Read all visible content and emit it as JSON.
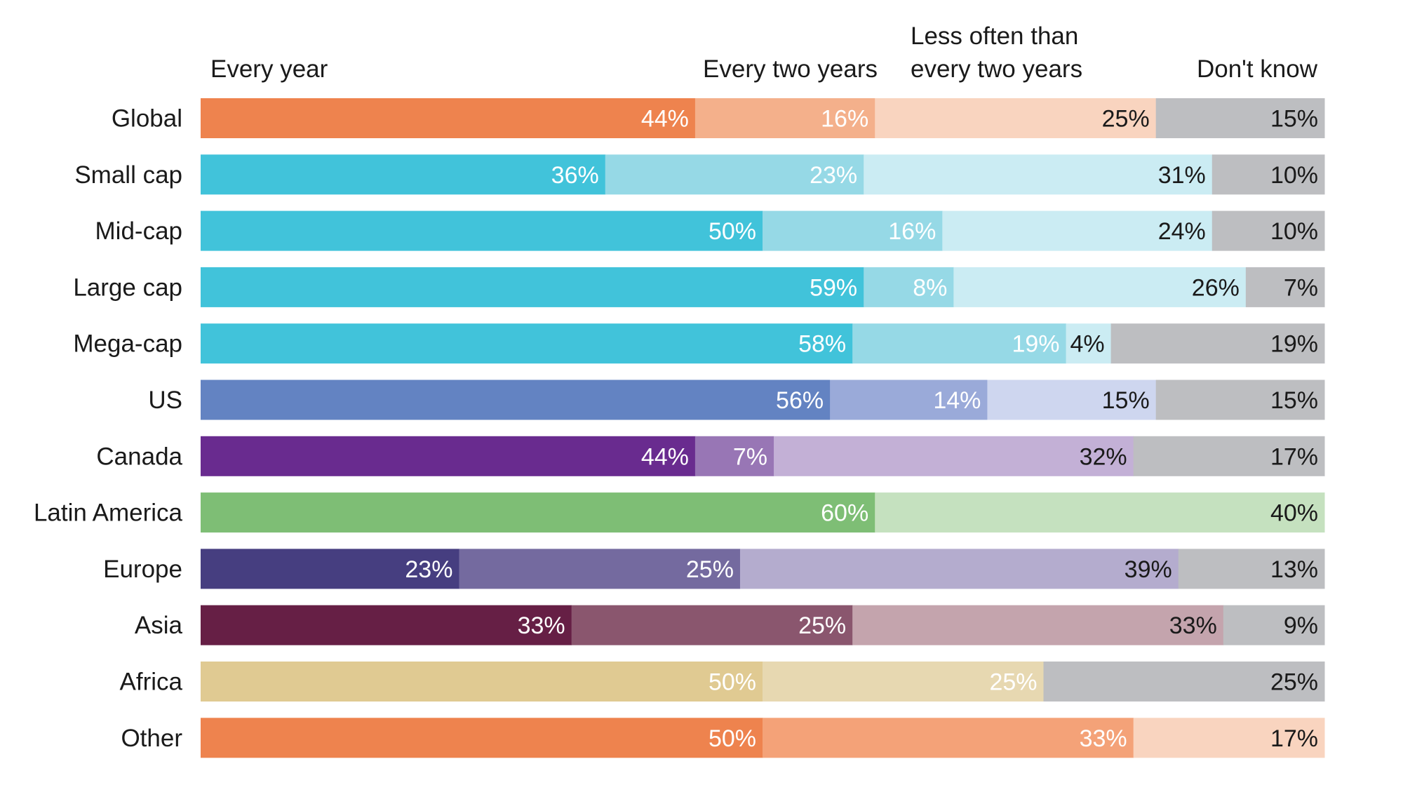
{
  "chart_data": {
    "type": "bar",
    "stacked": true,
    "orientation": "horizontal",
    "percent": true,
    "header_labels": [
      [
        "Every year"
      ],
      [
        "Every two years"
      ],
      [
        "Less often than",
        "every two years"
      ],
      [
        "Don't know"
      ]
    ],
    "categories": [
      "Global",
      "Small cap",
      "Mid-cap",
      "Large cap",
      "Mega-cap",
      "US",
      "Canada",
      "Latin America",
      "Europe",
      "Asia",
      "Africa",
      "Other"
    ],
    "rows": [
      {
        "category": "Global",
        "values": [
          44,
          16,
          25,
          15
        ],
        "colors": [
          "#ee834e",
          "#f4b08b",
          "#f9d4bf",
          "#bdbec1"
        ],
        "text_colors": [
          "#ffffff",
          "#ffffff",
          "#1a1a1a",
          "#1a1a1a"
        ]
      },
      {
        "category": "Small cap",
        "values": [
          36,
          23,
          31,
          10
        ],
        "colors": [
          "#41c3da",
          "#96d9e6",
          "#cbecf3",
          "#bdbec1"
        ],
        "text_colors": [
          "#ffffff",
          "#ffffff",
          "#1a1a1a",
          "#1a1a1a"
        ]
      },
      {
        "category": "Mid-cap",
        "values": [
          50,
          16,
          24,
          10
        ],
        "colors": [
          "#41c3da",
          "#96d9e6",
          "#cbecf3",
          "#bdbec1"
        ],
        "text_colors": [
          "#ffffff",
          "#ffffff",
          "#1a1a1a",
          "#1a1a1a"
        ]
      },
      {
        "category": "Large cap",
        "values": [
          59,
          8,
          26,
          7
        ],
        "colors": [
          "#41c3da",
          "#96d9e6",
          "#cbecf3",
          "#bdbec1"
        ],
        "text_colors": [
          "#ffffff",
          "#ffffff",
          "#1a1a1a",
          "#1a1a1a"
        ]
      },
      {
        "category": "Mega-cap",
        "values": [
          58,
          19,
          4,
          19
        ],
        "colors": [
          "#41c3da",
          "#96d9e6",
          "#cbecf3",
          "#bdbec1"
        ],
        "text_colors": [
          "#ffffff",
          "#ffffff",
          "#1a1a1a",
          "#1a1a1a"
        ]
      },
      {
        "category": "US",
        "values": [
          56,
          14,
          15,
          15
        ],
        "colors": [
          "#6383c2",
          "#9aaad9",
          "#ced6ef",
          "#bdbec1"
        ],
        "text_colors": [
          "#ffffff",
          "#ffffff",
          "#1a1a1a",
          "#1a1a1a"
        ]
      },
      {
        "category": "Canada",
        "values": [
          44,
          7,
          32,
          17
        ],
        "colors": [
          "#692b8f",
          "#9876b5",
          "#c3b0d6",
          "#bdbec1"
        ],
        "text_colors": [
          "#ffffff",
          "#ffffff",
          "#1a1a1a",
          "#1a1a1a"
        ]
      },
      {
        "category": "Latin America",
        "values": [
          60,
          0,
          0,
          40
        ],
        "colors": [
          "#7ebe75",
          "#a9d4a1",
          "#c5e1bf",
          "#c5e1bf"
        ],
        "text_colors": [
          "#ffffff",
          "#ffffff",
          "#1a1a1a",
          "#1a1a1a"
        ]
      },
      {
        "category": "Europe",
        "values": [
          23,
          25,
          39,
          13
        ],
        "colors": [
          "#463e80",
          "#746a9f",
          "#b4acce",
          "#bdbec1"
        ],
        "text_colors": [
          "#ffffff",
          "#ffffff",
          "#1a1a1a",
          "#1a1a1a"
        ]
      },
      {
        "category": "Asia",
        "values": [
          33,
          25,
          33,
          9
        ],
        "colors": [
          "#661f45",
          "#8a566e",
          "#c4a4ad",
          "#bdbec1"
        ],
        "text_colors": [
          "#ffffff",
          "#ffffff",
          "#1a1a1a",
          "#1a1a1a"
        ]
      },
      {
        "category": "Africa",
        "values": [
          50,
          25,
          0,
          25
        ],
        "colors": [
          "#e0ca92",
          "#e7d8b1",
          "#efe4c7",
          "#bdbec1"
        ],
        "text_colors": [
          "#ffffff",
          "#ffffff",
          "#1a1a1a",
          "#1a1a1a"
        ]
      },
      {
        "category": "Other",
        "values": [
          50,
          33,
          17,
          0
        ],
        "colors": [
          "#ee834e",
          "#f4a278",
          "#f9d4bf",
          "#bdbec1"
        ],
        "text_colors": [
          "#ffffff",
          "#ffffff",
          "#1a1a1a",
          "#1a1a1a"
        ]
      }
    ],
    "value_format": "%",
    "xlim": [
      0,
      100
    ],
    "legend": "top",
    "grid": false
  }
}
